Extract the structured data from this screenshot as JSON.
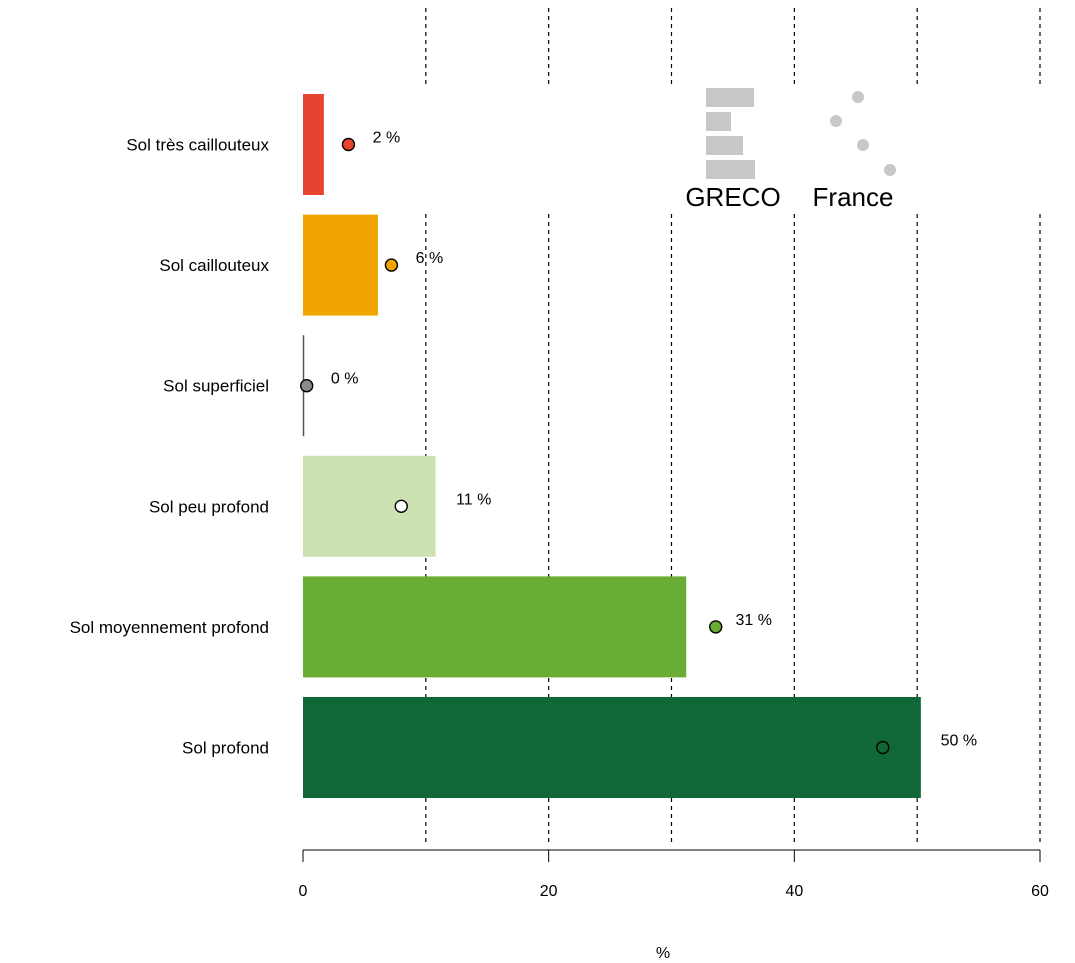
{
  "chart_data": {
    "type": "bar",
    "orientation": "horizontal",
    "categories": [
      "Sol très caillouteux",
      "Sol caillouteux",
      "Sol superficiel",
      "Sol peu profond",
      "Sol moyennement profond",
      "Sol profond"
    ],
    "series": [
      {
        "name": "GRECO",
        "values": [
          1.7,
          6.1,
          0.1,
          10.8,
          31.2,
          50.3
        ]
      },
      {
        "name": "France",
        "values": [
          3.7,
          7.2,
          0.3,
          8.0,
          33.6,
          47.2
        ]
      }
    ],
    "value_labels": [
      "2 %",
      "6 %",
      "0 %",
      "11 %",
      "31 %",
      "50 %"
    ],
    "bar_colors": [
      "#e84231",
      "#f0a500",
      "#b0b0b0",
      "#cde2b2",
      "#69ad34",
      "#106838"
    ],
    "point_fills": [
      "#e84231",
      "#f0a500",
      "#8a8a8a",
      "#ffffff",
      "#69ad34",
      "#106838"
    ],
    "x_ticks": [
      0,
      20,
      40,
      60
    ],
    "xlim": [
      0,
      60
    ],
    "gridlines_at": [
      10,
      20,
      30,
      40,
      50,
      60
    ],
    "grid": "dashed vertical",
    "xlabel": "%",
    "legend": {
      "placement": "top-right",
      "entries": [
        "GRECO",
        "France"
      ],
      "color": "#c8c8c8"
    }
  }
}
